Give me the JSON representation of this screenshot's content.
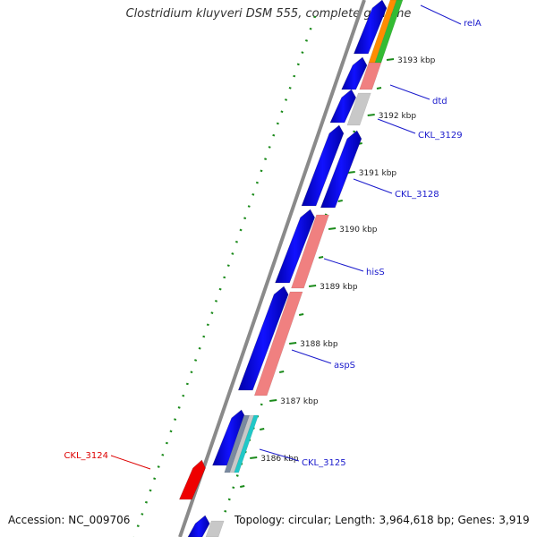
{
  "title": "Clostridium kluyveri DSM 555, complete genome",
  "accession": "Accession: NC_009706",
  "topology": "Topology: circular; Length: 3,964,618 bp; Genes: 3,919",
  "tick_labels": [
    "3193 kbp",
    "3192 kbp",
    "3191 kbp",
    "3190 kbp",
    "3189 kbp",
    "3188 kbp",
    "3187 kbp",
    "3186 kbp"
  ],
  "gene_labels": [
    "relA",
    "dtd",
    "CKL_3129",
    "CKL_3128",
    "hisS",
    "aspS",
    "CKL_3125",
    "CKL_3124"
  ],
  "colors": {
    "forward_label": "#1a1acc",
    "reverse_label": "#dd0000",
    "cds_blue": "#0000ee",
    "gene_pink": "#f08080",
    "gene_gray": "#c8c8c8",
    "gene_cyan": "#20c8c8",
    "gene_orange": "#ff8c00",
    "gene_green": "#33bb33",
    "reverse_red": "#ee0000",
    "backbone": "#808080",
    "tick_green": "#1a8a1a"
  }
}
